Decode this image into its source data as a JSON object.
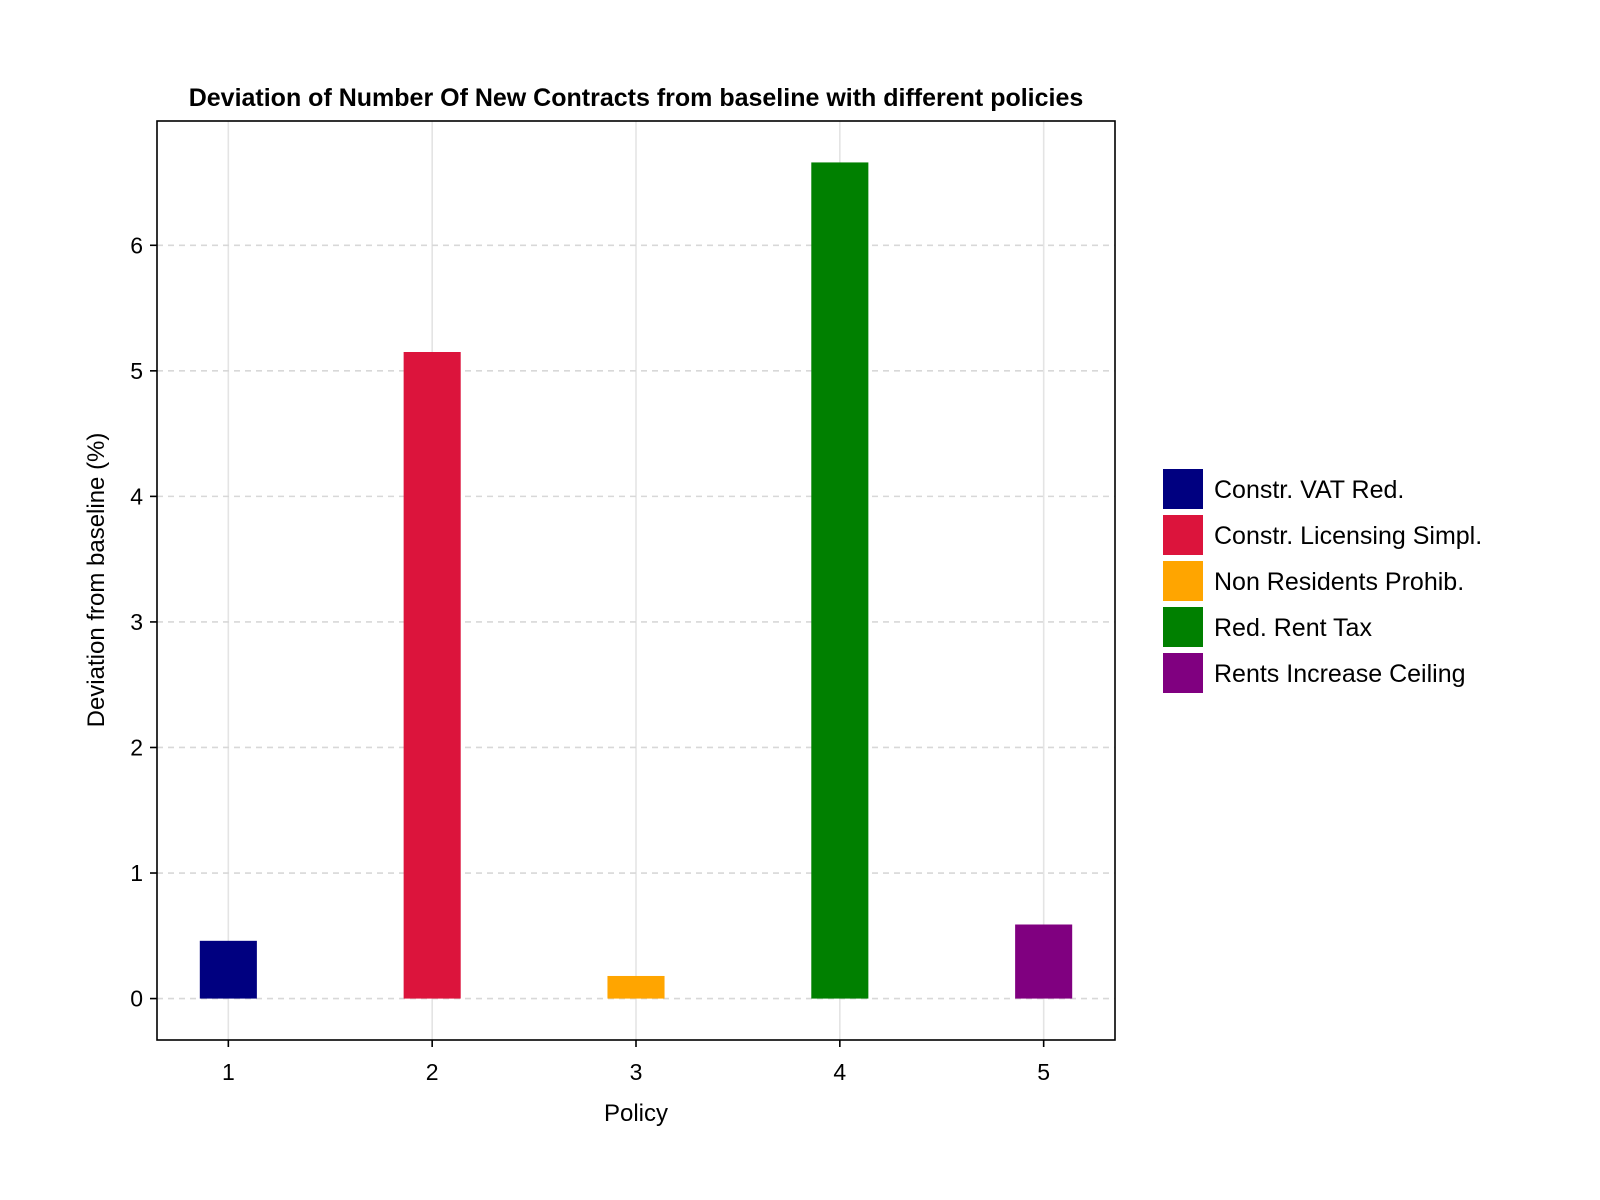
{
  "chart_data": {
    "type": "bar",
    "title": "Deviation of Number Of New Contracts from baseline with different policies",
    "xlabel": "Policy",
    "ylabel": "Deviation from baseline (%)",
    "categories": [
      "1",
      "2",
      "3",
      "4",
      "5"
    ],
    "values": [
      0.46,
      5.15,
      0.18,
      6.66,
      0.59
    ],
    "colors": [
      "#000080",
      "#dc143c",
      "#ffa500",
      "#008000",
      "#800080"
    ],
    "xlim": [
      0.65,
      5.35
    ],
    "ylim": [
      -0.33,
      6.99
    ],
    "y_ticks": [
      0,
      1,
      2,
      3,
      4,
      5,
      6
    ],
    "grid": true,
    "legend_position": "right",
    "legend": [
      {
        "label": "Constr. VAT Red.",
        "color": "#000080"
      },
      {
        "label": "Constr. Licensing Simpl.",
        "color": "#dc143c"
      },
      {
        "label": "Non Residents Prohib.",
        "color": "#ffa500"
      },
      {
        "label": "Red. Rent Tax",
        "color": "#008000"
      },
      {
        "label": "Rents Increase Ceiling",
        "color": "#800080"
      }
    ]
  }
}
